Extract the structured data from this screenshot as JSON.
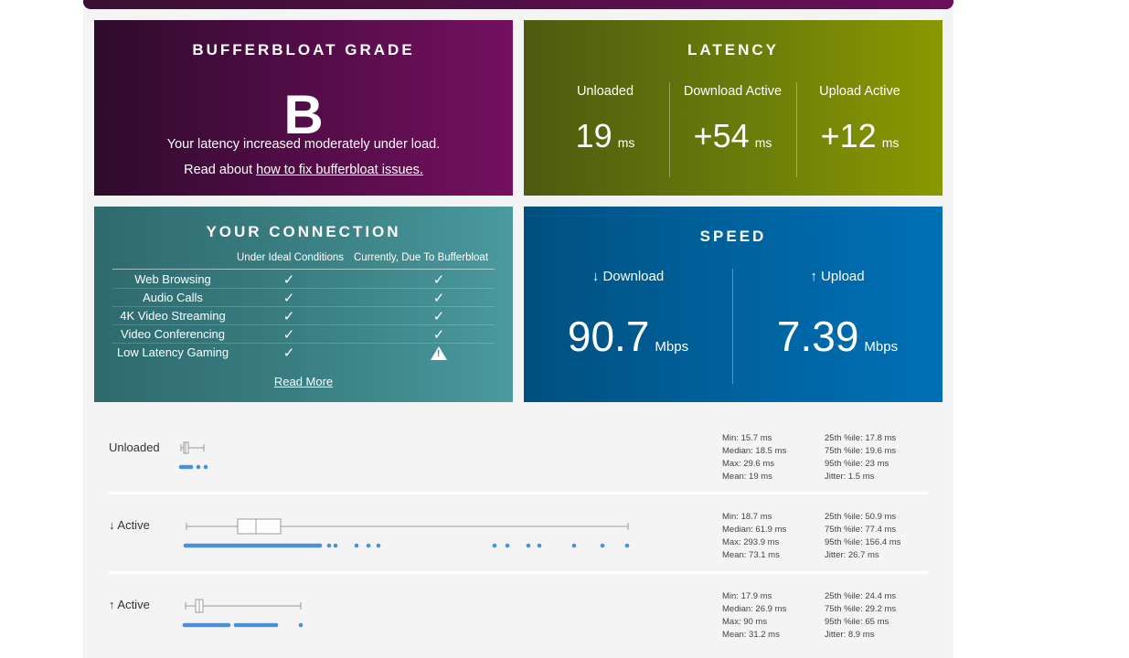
{
  "bufferbloat": {
    "title": "BUFFERBLOAT GRADE",
    "grade": "B",
    "description": "Your latency increased moderately under load.",
    "read_prefix": "Read about ",
    "read_link": "how to fix bufferbloat issues."
  },
  "latency": {
    "title": "LATENCY",
    "columns": [
      {
        "label": "Unloaded",
        "value": "19",
        "unit": "ms"
      },
      {
        "label": "Download Active",
        "value": "+54",
        "unit": "ms"
      },
      {
        "label": "Upload Active",
        "value": "+12",
        "unit": "ms"
      }
    ]
  },
  "connection": {
    "title": "YOUR CONNECTION",
    "col_ideal": "Under Ideal Conditions",
    "col_current": "Currently, Due To Bufferbloat",
    "rows": [
      {
        "name": "Web Browsing",
        "ideal": "✓",
        "current": "✓"
      },
      {
        "name": "Audio Calls",
        "ideal": "✓",
        "current": "✓"
      },
      {
        "name": "4K Video Streaming",
        "ideal": "✓",
        "current": "✓"
      },
      {
        "name": "Video Conferencing",
        "ideal": "✓",
        "current": "✓"
      },
      {
        "name": "Low Latency Gaming",
        "ideal": "✓",
        "current": "warning"
      }
    ],
    "read_more": "Read More"
  },
  "speed": {
    "title": "SPEED",
    "download": {
      "label": "↓ Download",
      "value": "90.7",
      "unit": "Mbps"
    },
    "upload": {
      "label": "↑ Upload",
      "value": "7.39",
      "unit": "Mbps"
    }
  },
  "stats": [
    {
      "label": "Unloaded",
      "left": [
        "Min: 15.7 ms",
        "Median: 18.5 ms",
        "Max: 29.6 ms",
        "Mean: 19 ms"
      ],
      "right": [
        "25th %ile: 17.8 ms",
        "75th %ile: 19.6 ms",
        "95th %ile: 23 ms",
        "Jitter: 1.5 ms"
      ]
    },
    {
      "label": "↓ Active",
      "left": [
        "Min: 18.7 ms",
        "Median: 61.9 ms",
        "Max: 293.9 ms",
        "Mean: 73.1 ms"
      ],
      "right": [
        "25th %ile: 50.9 ms",
        "75th %ile: 77.4 ms",
        "95th %ile: 156.4 ms",
        "Jitter: 26.7 ms"
      ]
    },
    {
      "label": "↑ Active",
      "left": [
        "Min: 17.9 ms",
        "Median: 26.9 ms",
        "Max: 90 ms",
        "Mean: 31.2 ms"
      ],
      "right": [
        "25th %ile: 24.4 ms",
        "75th %ile: 29.2 ms",
        "95th %ile: 65 ms",
        "Jitter: 8.9 ms"
      ]
    }
  ],
  "plot_colors": {
    "box": "#999999",
    "dot": "#4a90d9"
  }
}
